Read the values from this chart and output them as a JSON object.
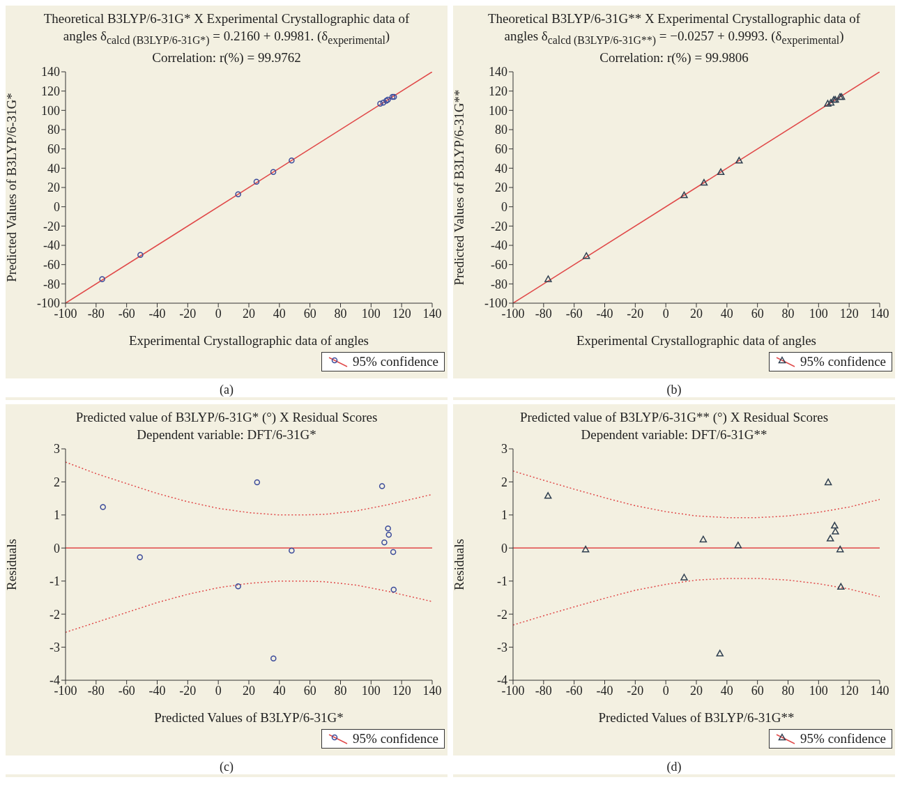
{
  "chart_data": [
    {
      "type": "scatter",
      "title": "Theoretical B3LYP/6-31G* X Experimental Crystallographic data of angles δ$_{calcd (B3LYP/6-31G*)}$ = 0.2160 + 0.9981. (δ$_{experimental}$)",
      "subtitle": "Correlation: r(%) = 99.9762",
      "xlabel": "Experimental Crystallographic data of angles",
      "ylabel": "Predicted Values of B3LYP/6-31G*",
      "annotations": [
        "(a)"
      ],
      "legend": "bottom right",
      "xlim": [
        -100,
        140
      ],
      "xticks": [
        -100,
        -80,
        -60,
        -40,
        -20,
        0,
        20,
        40,
        60,
        80,
        100,
        120,
        140
      ],
      "ylim": [
        -100,
        140
      ],
      "yticks": [
        -100,
        -80,
        -60,
        -40,
        -20,
        0,
        20,
        40,
        60,
        80,
        100,
        120,
        140
      ],
      "series": [
        {
          "marker": "circle",
          "color": "#3a4a9a",
          "x": [
            -76,
            -51,
            13,
            25,
            36,
            48,
            106,
            108,
            110,
            111,
            114,
            115
          ],
          "values": [
            -75,
            -50,
            13,
            26,
            36,
            48,
            107,
            108,
            110,
            111,
            114,
            114
          ]
        },
        {
          "type": "line",
          "name": "95% confidence",
          "color": "#e04848",
          "line_style": "solid",
          "x": [
            -100,
            140
          ],
          "values": [
            -100,
            140
          ]
        }
      ]
    },
    {
      "type": "scatter",
      "title": "Theoretical B3LYP/6-31G** X Experimental Crystallographic data of angles δ$_{calcd (B3LYP/6-31G**)}$ = −0.0257 + 0.9993. (δ$_{experimental}$)",
      "subtitle": "Correlation: r(%) = 99.9806",
      "xlabel": "Experimental Crystallographic data of angles",
      "ylabel": "Predicted Values of B3LYP/6-31G**",
      "annotations": [
        "(b)"
      ],
      "legend": "bottom right",
      "xlim": [
        -100,
        140
      ],
      "xticks": [
        -100,
        -80,
        -60,
        -40,
        -20,
        0,
        20,
        40,
        60,
        80,
        100,
        120,
        140
      ],
      "ylim": [
        -100,
        140
      ],
      "yticks": [
        -100,
        -80,
        -60,
        -40,
        -20,
        0,
        20,
        40,
        60,
        80,
        100,
        120,
        140
      ],
      "series": [
        {
          "marker": "triangle",
          "color": "#2f3f50",
          "x": [
            -77,
            -52,
            12,
            25,
            36,
            48,
            106,
            108,
            110,
            111,
            114,
            115
          ],
          "values": [
            -75,
            -51,
            12,
            25,
            36,
            48,
            107,
            108,
            111,
            111,
            114,
            114
          ]
        },
        {
          "type": "line",
          "name": "95% confidence",
          "color": "#e04848",
          "line_style": "solid",
          "x": [
            -100,
            140
          ],
          "values": [
            -100,
            140
          ]
        }
      ]
    },
    {
      "type": "scatter",
      "title": "Predicted value of B3LYP/6-31G* (°) X Residual Scores",
      "subtitle": "Dependent variable: DFT/6-31G*",
      "xlabel": "Predicted Values of B3LYP/6-31G*",
      "ylabel": "Residuals",
      "annotations": [
        "(c)"
      ],
      "legend": "bottom right",
      "xlim": [
        -100,
        140
      ],
      "xticks": [
        -100,
        -80,
        -60,
        -40,
        -20,
        0,
        20,
        40,
        60,
        80,
        100,
        120,
        140
      ],
      "ylim": [
        -4,
        3
      ],
      "yticks": [
        -4,
        -3,
        -2,
        -1,
        0,
        1,
        2,
        3
      ],
      "series": [
        {
          "marker": "circle",
          "color": "#3a4a9a",
          "x": [
            -75.5,
            -51.3,
            13.0,
            25.4,
            36.1,
            48.0,
            107.2,
            108.7,
            111.1,
            111.6,
            114.5,
            114.8
          ],
          "values": [
            1.24,
            -0.28,
            -1.16,
            1.99,
            -3.34,
            -0.08,
            1.87,
            0.17,
            0.59,
            0.4,
            -0.12,
            -1.26
          ]
        },
        {
          "type": "line",
          "name": "95% confidence",
          "color": "#e04848",
          "line_style": "solid",
          "x": [
            -100,
            140
          ],
          "values": [
            0,
            0
          ]
        },
        {
          "type": "line",
          "color": "#e04848",
          "line_style": "dotted",
          "x": [
            -100,
            -80,
            -60,
            -40,
            -20,
            0,
            20,
            40,
            55,
            70,
            90,
            110,
            140
          ],
          "values": [
            2.6,
            2.25,
            1.95,
            1.65,
            1.4,
            1.2,
            1.07,
            1.0,
            1.0,
            1.02,
            1.12,
            1.3,
            1.62
          ]
        },
        {
          "type": "line",
          "color": "#e04848",
          "line_style": "dotted",
          "x": [
            -100,
            -80,
            -60,
            -40,
            -20,
            0,
            20,
            40,
            55,
            70,
            90,
            110,
            140
          ],
          "values": [
            -2.55,
            -2.25,
            -1.95,
            -1.65,
            -1.4,
            -1.2,
            -1.07,
            -1.0,
            -1.0,
            -1.02,
            -1.12,
            -1.3,
            -1.62
          ]
        }
      ]
    },
    {
      "type": "scatter",
      "title": "Predicted value of B3LYP/6-31G** (°) X Residual Scores",
      "subtitle": "Dependent variable: DFT/6-31G**",
      "xlabel": "Predicted Values of B3LYP/6-31G**",
      "ylabel": "Residuals",
      "annotations": [
        "(d)"
      ],
      "legend": "bottom right",
      "xlim": [
        -100,
        140
      ],
      "xticks": [
        -100,
        -80,
        -60,
        -40,
        -20,
        0,
        20,
        40,
        60,
        80,
        100,
        120,
        140
      ],
      "ylim": [
        -4,
        3
      ],
      "yticks": [
        -4,
        -3,
        -2,
        -1,
        0,
        1,
        2,
        3
      ],
      "series": [
        {
          "marker": "triangle",
          "color": "#2f3f50",
          "x": [
            -77.1,
            -52.5,
            12.0,
            24.5,
            35.4,
            47.3,
            106.3,
            107.7,
            110.5,
            111.0,
            114.1,
            114.6
          ],
          "values": [
            1.58,
            -0.04,
            -0.89,
            0.26,
            -3.19,
            0.08,
            1.99,
            0.29,
            0.68,
            0.5,
            -0.04,
            -1.17
          ]
        },
        {
          "type": "line",
          "name": "95% confidence",
          "color": "#e04848",
          "line_style": "solid",
          "x": [
            -100,
            140
          ],
          "values": [
            0,
            0
          ]
        },
        {
          "type": "line",
          "color": "#e04848",
          "line_style": "dotted",
          "x": [
            -100,
            -80,
            -60,
            -40,
            -20,
            0,
            20,
            40,
            60,
            80,
            100,
            120,
            140
          ],
          "values": [
            2.33,
            2.05,
            1.78,
            1.52,
            1.28,
            1.1,
            0.97,
            0.92,
            0.92,
            0.97,
            1.08,
            1.24,
            1.47
          ]
        },
        {
          "type": "line",
          "color": "#e04848",
          "line_style": "dotted",
          "x": [
            -100,
            -80,
            -60,
            -40,
            -20,
            0,
            20,
            40,
            60,
            80,
            100,
            120,
            140
          ],
          "values": [
            -2.33,
            -2.05,
            -1.78,
            -1.52,
            -1.28,
            -1.1,
            -0.97,
            -0.92,
            -0.92,
            -0.97,
            -1.08,
            -1.24,
            -1.47
          ]
        }
      ]
    }
  ]
}
